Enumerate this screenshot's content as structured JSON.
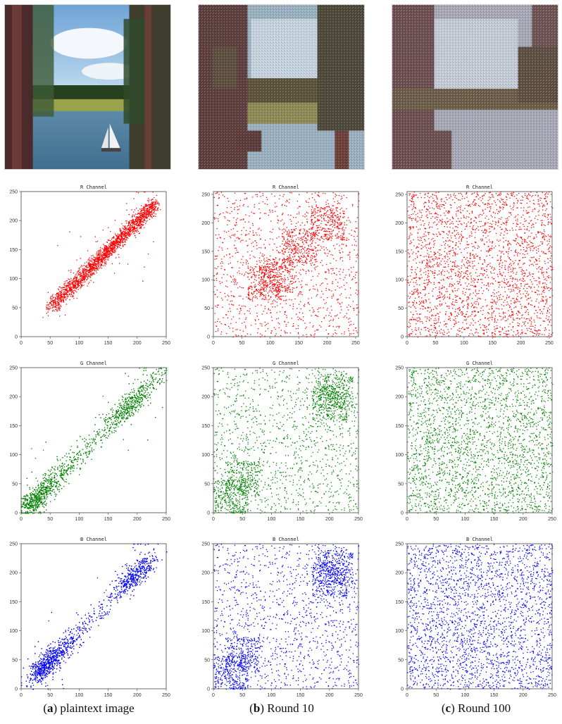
{
  "columns": [
    {
      "id": "a",
      "caption": {
        "letter": "a",
        "text": "plaintext image"
      },
      "photo": "plaintext-photo"
    },
    {
      "id": "b",
      "caption": {
        "letter": "b",
        "text": "Round 10"
      },
      "photo": "round10-photo"
    },
    {
      "id": "c",
      "caption": {
        "letter": "c",
        "text": "Round 100"
      },
      "photo": "round100-photo"
    }
  ],
  "colors": {
    "R": "#ff0000",
    "G": "#008000",
    "B": "#0000ff"
  },
  "chart_data": [
    {
      "type": "scatter",
      "panel": "a",
      "channel": "R",
      "title": "R Channel",
      "color": "#ff0000",
      "xlim": [
        0,
        250
      ],
      "ylim": [
        0,
        250
      ],
      "x_ticks": [
        0,
        50,
        100,
        150,
        200,
        250
      ],
      "y_ticks": [
        0,
        50,
        100,
        150,
        200,
        250
      ],
      "distribution": "correlated-diagonal",
      "approx_range": [
        50,
        230
      ]
    },
    {
      "type": "scatter",
      "panel": "b",
      "channel": "R",
      "title": "R Channel",
      "color": "#ff0000",
      "xlim": [
        0,
        255
      ],
      "ylim": [
        0,
        255
      ],
      "x_ticks": [
        0,
        50,
        100,
        150,
        200,
        250
      ],
      "y_ticks": [
        0,
        50,
        100,
        150,
        200,
        250
      ],
      "distribution": "blocky-clusters",
      "approx_range": [
        0,
        255
      ]
    },
    {
      "type": "scatter",
      "panel": "c",
      "channel": "R",
      "title": "R Channel",
      "color": "#ff0000",
      "xlim": [
        0,
        255
      ],
      "ylim": [
        0,
        255
      ],
      "x_ticks": [
        0,
        50,
        100,
        150,
        200,
        250
      ],
      "y_ticks": [
        0,
        50,
        100,
        150,
        200,
        250
      ],
      "distribution": "uniform",
      "approx_range": [
        0,
        255
      ]
    },
    {
      "type": "scatter",
      "panel": "a",
      "channel": "G",
      "title": "G Channel",
      "color": "#008000",
      "xlim": [
        0,
        250
      ],
      "ylim": [
        0,
        250
      ],
      "x_ticks": [
        0,
        50,
        100,
        150,
        200,
        250
      ],
      "y_ticks": [
        0,
        50,
        100,
        150,
        200,
        250
      ],
      "distribution": "correlated-diagonal",
      "approx_range": [
        0,
        245
      ]
    },
    {
      "type": "scatter",
      "panel": "b",
      "channel": "G",
      "title": "G Channel",
      "color": "#008000",
      "xlim": [
        0,
        250
      ],
      "ylim": [
        0,
        250
      ],
      "x_ticks": [
        0,
        50,
        100,
        150,
        200,
        250
      ],
      "y_ticks": [
        0,
        50,
        100,
        150,
        200,
        250
      ],
      "distribution": "blocky-clusters",
      "approx_range": [
        0,
        250
      ]
    },
    {
      "type": "scatter",
      "panel": "c",
      "channel": "G",
      "title": "G Channel",
      "color": "#008000",
      "xlim": [
        0,
        250
      ],
      "ylim": [
        0,
        250
      ],
      "x_ticks": [
        0,
        50,
        100,
        150,
        200,
        250
      ],
      "y_ticks": [
        0,
        50,
        100,
        150,
        200,
        250
      ],
      "distribution": "uniform",
      "approx_range": [
        0,
        250
      ]
    },
    {
      "type": "scatter",
      "panel": "a",
      "channel": "B",
      "title": "B Channel",
      "color": "#0000ff",
      "xlim": [
        0,
        250
      ],
      "ylim": [
        0,
        250
      ],
      "x_ticks": [
        0,
        50,
        100,
        150,
        200,
        250
      ],
      "y_ticks": [
        0,
        50,
        100,
        150,
        200,
        250
      ],
      "distribution": "correlated-diagonal",
      "approx_range": [
        10,
        225
      ]
    },
    {
      "type": "scatter",
      "panel": "b",
      "channel": "B",
      "title": "B Channel",
      "color": "#0000ff",
      "xlim": [
        0,
        250
      ],
      "ylim": [
        0,
        250
      ],
      "x_ticks": [
        0,
        50,
        100,
        150,
        200,
        250
      ],
      "y_ticks": [
        0,
        50,
        100,
        150,
        200,
        250
      ],
      "distribution": "blocky-clusters",
      "approx_range": [
        0,
        250
      ]
    },
    {
      "type": "scatter",
      "panel": "c",
      "channel": "B",
      "title": "B Channel",
      "color": "#0000ff",
      "xlim": [
        0,
        250
      ],
      "ylim": [
        0,
        250
      ],
      "x_ticks": [
        0,
        50,
        100,
        150,
        200,
        250
      ],
      "y_ticks": [
        0,
        50,
        100,
        150,
        200,
        250
      ],
      "distribution": "uniform",
      "approx_range": [
        0,
        250
      ]
    }
  ]
}
